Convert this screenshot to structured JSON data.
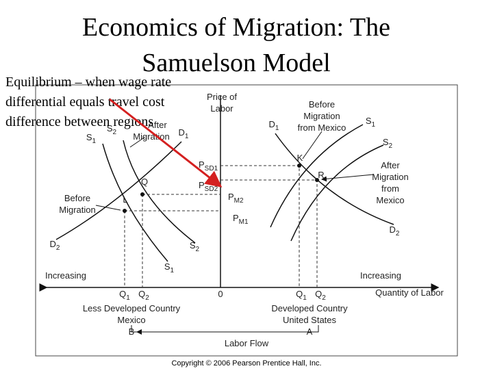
{
  "title": {
    "lines": [
      "Economics of Migration: The",
      "Samuelson Model"
    ]
  },
  "annotation": {
    "lines": [
      "Equilibrium – when wage rate",
      "differential equals travel cost",
      "difference between regions"
    ]
  },
  "diagram": {
    "labels": [
      {
        "text": "S",
        "sub": "1"
      },
      {
        "text": "S",
        "sub": "2"
      },
      {
        "text": "After"
      },
      {
        "text": "Migration"
      },
      {
        "text": "D",
        "sub": "1"
      },
      {
        "text": "Q"
      },
      {
        "text": "L"
      },
      {
        "text": "Before"
      },
      {
        "text": "Migration"
      },
      {
        "text": "D",
        "sub": "2"
      },
      {
        "text": "S",
        "sub": "2"
      },
      {
        "text": "S",
        "sub": "1"
      },
      {
        "text": "Increasing"
      },
      {
        "text": "Q",
        "sub": "1"
      },
      {
        "text": "Q",
        "sub": "2"
      },
      {
        "text": "0"
      },
      {
        "text": "Less Developed Country"
      },
      {
        "text": "Mexico"
      },
      {
        "text": "B"
      },
      {
        "text": "Price of"
      },
      {
        "text": "Labor"
      },
      {
        "text": "P",
        "sub": "SD1"
      },
      {
        "text": "P",
        "sub": "SD2"
      },
      {
        "text": "P",
        "sub": "M2"
      },
      {
        "text": "P",
        "sub": "M1"
      },
      {
        "text": "Before"
      },
      {
        "text": "Migration"
      },
      {
        "text": "from Mexico"
      },
      {
        "text": "D",
        "sub": "1"
      },
      {
        "text": "S",
        "sub": "1"
      },
      {
        "text": "S",
        "sub": "2"
      },
      {
        "text": "K"
      },
      {
        "text": "R"
      },
      {
        "text": "After"
      },
      {
        "text": "Migration"
      },
      {
        "text": "from"
      },
      {
        "text": "Mexico"
      },
      {
        "text": "D",
        "sub": "2"
      },
      {
        "text": "Increasing"
      },
      {
        "text": "Q",
        "sub": "1"
      },
      {
        "text": "Q",
        "sub": "2"
      },
      {
        "text": "Quantity of Labor"
      },
      {
        "text": "Developed Country"
      },
      {
        "text": "United States"
      },
      {
        "text": "A"
      },
      {
        "text": "Labor Flow"
      }
    ]
  },
  "copyright": "Copyright © 2006 Pearson Prentice Hall, Inc."
}
